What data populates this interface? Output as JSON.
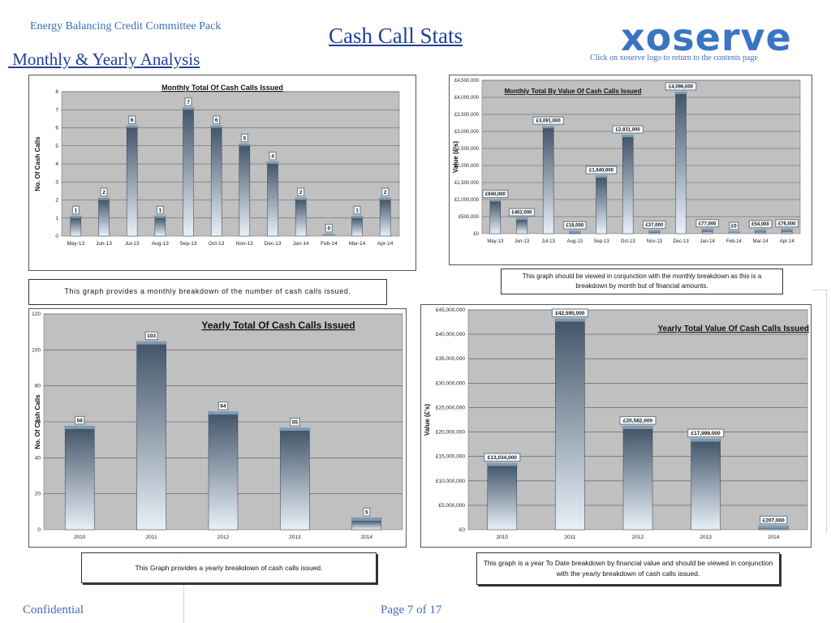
{
  "header": {
    "pack": "Energy Balancing Credit Committee Pack",
    "subtitle": " Monthly & Yearly Analysis",
    "title": "Cash Call Stats",
    "logo_note": "Click on xoserve logo to return to the contents page",
    "logo_text": "xoserve"
  },
  "footer": {
    "confidential": "Confidential",
    "page": "Page 7 of 17"
  },
  "notes": {
    "monthly_count": "This graph provides a monthly breakdown of the number of cash calls issued.",
    "monthly_value": "This graph should be viewed in conjunction with the monthly breakdown as this is a breakdown by month but of financial amounts.",
    "yearly_count": "This Graph provides a yearly breakdown of cash calls issued.",
    "yearly_value": "This graph is a year To Date breakdown by financial value and should be viewed in conjunction with the yearly breakdown of cash calls issued."
  },
  "colors": {
    "plot_bg": "#c0c0c0",
    "bar_top": "#44576a",
    "bar_bottom": "#e8f0f8",
    "label_bg": "#6f889d"
  },
  "chart_data": [
    {
      "type": "bar",
      "title": "Monthly Total Of Cash Calls Issued",
      "ylabel": "No. Of Cash Calls",
      "categories": [
        "May-13",
        "Jun-13",
        "Jul-13",
        "Aug-13",
        "Sep-13",
        "Oct-13",
        "Nov-13",
        "Dec-13",
        "Jan-14",
        "Feb-14",
        "Mar-14",
        "Apr-14"
      ],
      "values": [
        1,
        2,
        6,
        1,
        7,
        6,
        5,
        4,
        2,
        0,
        1,
        2
      ],
      "data_labels": [
        "1",
        "2",
        "6",
        "1",
        "7",
        "6",
        "5",
        "4",
        "2",
        "0",
        "1",
        "2"
      ],
      "yticks": [
        "0",
        "1",
        "2",
        "3",
        "4",
        "5",
        "6",
        "7",
        "8"
      ],
      "ylim": [
        0,
        8
      ],
      "grid": true
    },
    {
      "type": "bar",
      "title": "Monthly Total By Value Of Cash Calls Issued",
      "ylabel": "Value (£'s)",
      "categories": [
        "May-13",
        "Jun-13",
        "Jul-13",
        "Aug-13",
        "Sep-13",
        "Oct-13",
        "Nov-13",
        "Dec-13",
        "Jan-14",
        "Feb-14",
        "Mar-14",
        "Apr-14"
      ],
      "values": [
        940000,
        402000,
        3091000,
        18000,
        1640000,
        2831000,
        37000,
        4096000,
        77000,
        0,
        54000,
        76000
      ],
      "data_labels": [
        "£940,000",
        "£402,000",
        "£3,091,000",
        "£18,000",
        "£1,640,000",
        "£2,831,000",
        "£37,000",
        "£4,096,000",
        "£77,000",
        "£0",
        "£54,000",
        "£76,000"
      ],
      "yticks": [
        "£0",
        "£500,000",
        "£1,000,000",
        "£1,500,000",
        "£2,000,000",
        "£2,500,000",
        "£3,000,000",
        "£3,500,000",
        "£4,000,000",
        "£4,500,000"
      ],
      "ylim": [
        0,
        4500000
      ],
      "grid": true
    },
    {
      "type": "bar",
      "title": "Yearly Total Of Cash Calls Issued",
      "ylabel": "No. Of Cash Calls",
      "categories": [
        "2010",
        "2011",
        "2012",
        "2013",
        "2014"
      ],
      "values": [
        56,
        103,
        64,
        55,
        5
      ],
      "data_labels": [
        "56",
        "103",
        "64",
        "55",
        "5"
      ],
      "yticks": [
        "0",
        "20",
        "40",
        "60",
        "80",
        "100",
        "120"
      ],
      "ylim": [
        0,
        120
      ],
      "grid": true
    },
    {
      "type": "bar",
      "title": "Yearly Total Value Of Cash Calls Issued",
      "ylabel": "Value (£'s)",
      "categories": [
        "2010",
        "2011",
        "2012",
        "2013",
        "2014"
      ],
      "values": [
        13034000,
        42595000,
        20582000,
        17998000,
        207000
      ],
      "data_labels": [
        "£13,034,000",
        "£42,595,000",
        "£20,582,000",
        "£17,998,000",
        "£207,000"
      ],
      "yticks": [
        "£0",
        "£5,000,000",
        "£10,000,000",
        "£15,000,000",
        "£20,000,000",
        "£25,000,000",
        "£30,000,000",
        "£35,000,000",
        "£40,000,000",
        "£45,000,000"
      ],
      "ylim": [
        0,
        45000000
      ],
      "grid": true
    }
  ]
}
